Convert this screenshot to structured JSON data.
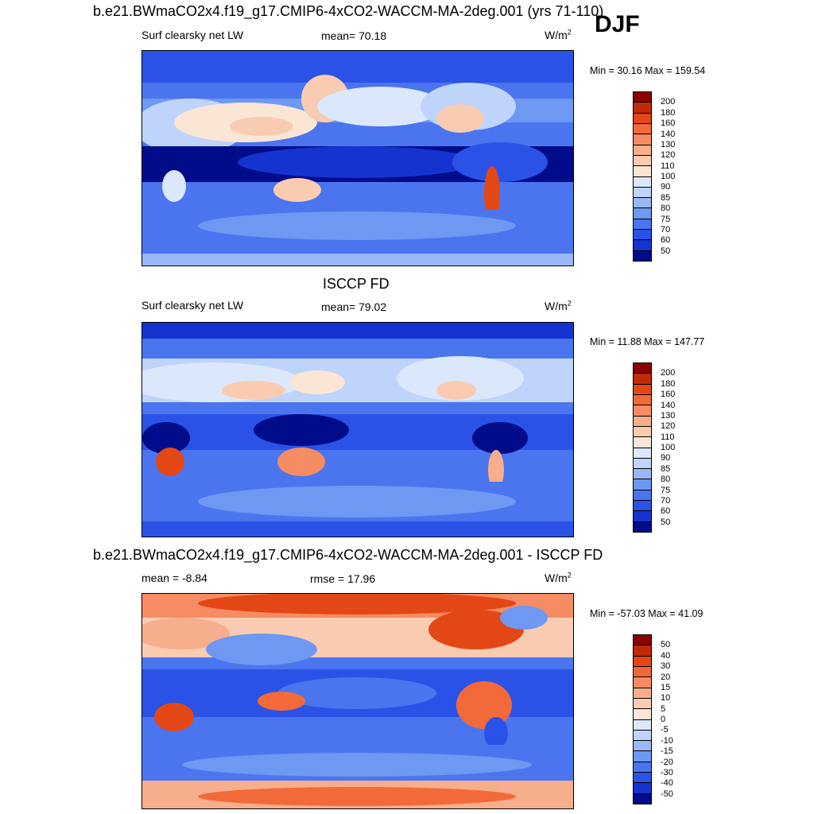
{
  "djf_label": "DJF",
  "color_scale": {
    "abs_colors": [
      "#8b0000",
      "#c02a08",
      "#e44716",
      "#f26a3a",
      "#f58c63",
      "#f7ae8c",
      "#f9ccb2",
      "#fbe6d6",
      "#dbe8fb",
      "#bed4fa",
      "#98b8f7",
      "#6e98f2",
      "#4a75ee",
      "#2a52e6",
      "#1533cf",
      "#000c8a"
    ],
    "abs_levels": [
      "200",
      "180",
      "160",
      "140",
      "130",
      "120",
      "110",
      "100",
      "90",
      "85",
      "80",
      "75",
      "70",
      "60",
      "50"
    ],
    "diff_colors": [
      "#8b0000",
      "#c02a08",
      "#e44716",
      "#f26a3a",
      "#f58c63",
      "#f7ae8c",
      "#f9ccb2",
      "#fbe6d6",
      "#dbe8fb",
      "#bed4fa",
      "#98b8f7",
      "#6e98f2",
      "#4a75ee",
      "#2a52e6",
      "#1533cf",
      "#000c8a"
    ],
    "diff_levels": [
      "50",
      "40",
      "30",
      "20",
      "15",
      "10",
      "5",
      "0",
      "-5",
      "-10",
      "-15",
      "-20",
      "-30",
      "-40",
      "-50"
    ]
  },
  "panels": [
    {
      "id": "model",
      "title": "b.e21.BWmaCO2x4.f19_g17.CMIP6-4xCO2-WACCM-MA-2deg.001 (yrs 71-110)",
      "left_label": "Surf clearsky net LW",
      "center_label": "mean=  70.18",
      "unit": "W/m",
      "unit_sup": "2",
      "minmax": "Min =  30.16 Max = 159.54",
      "scale": "abs"
    },
    {
      "id": "obs",
      "title": "ISCCP FD",
      "left_label": "Surf clearsky net LW",
      "center_label": "mean=  79.02",
      "unit": "W/m",
      "unit_sup": "2",
      "minmax": "Min =  11.88 Max = 147.77",
      "scale": "abs"
    },
    {
      "id": "diff",
      "title": "b.e21.BWmaCO2x4.f19_g17.CMIP6-4xCO2-WACCM-MA-2deg.001 - ISCCP FD",
      "left_label": "mean =  -8.84",
      "center_label": "rmse =  17.96",
      "unit": "W/m",
      "unit_sup": "2",
      "minmax": "Min = -57.03 Max =  41.09",
      "scale": "diff"
    }
  ]
}
